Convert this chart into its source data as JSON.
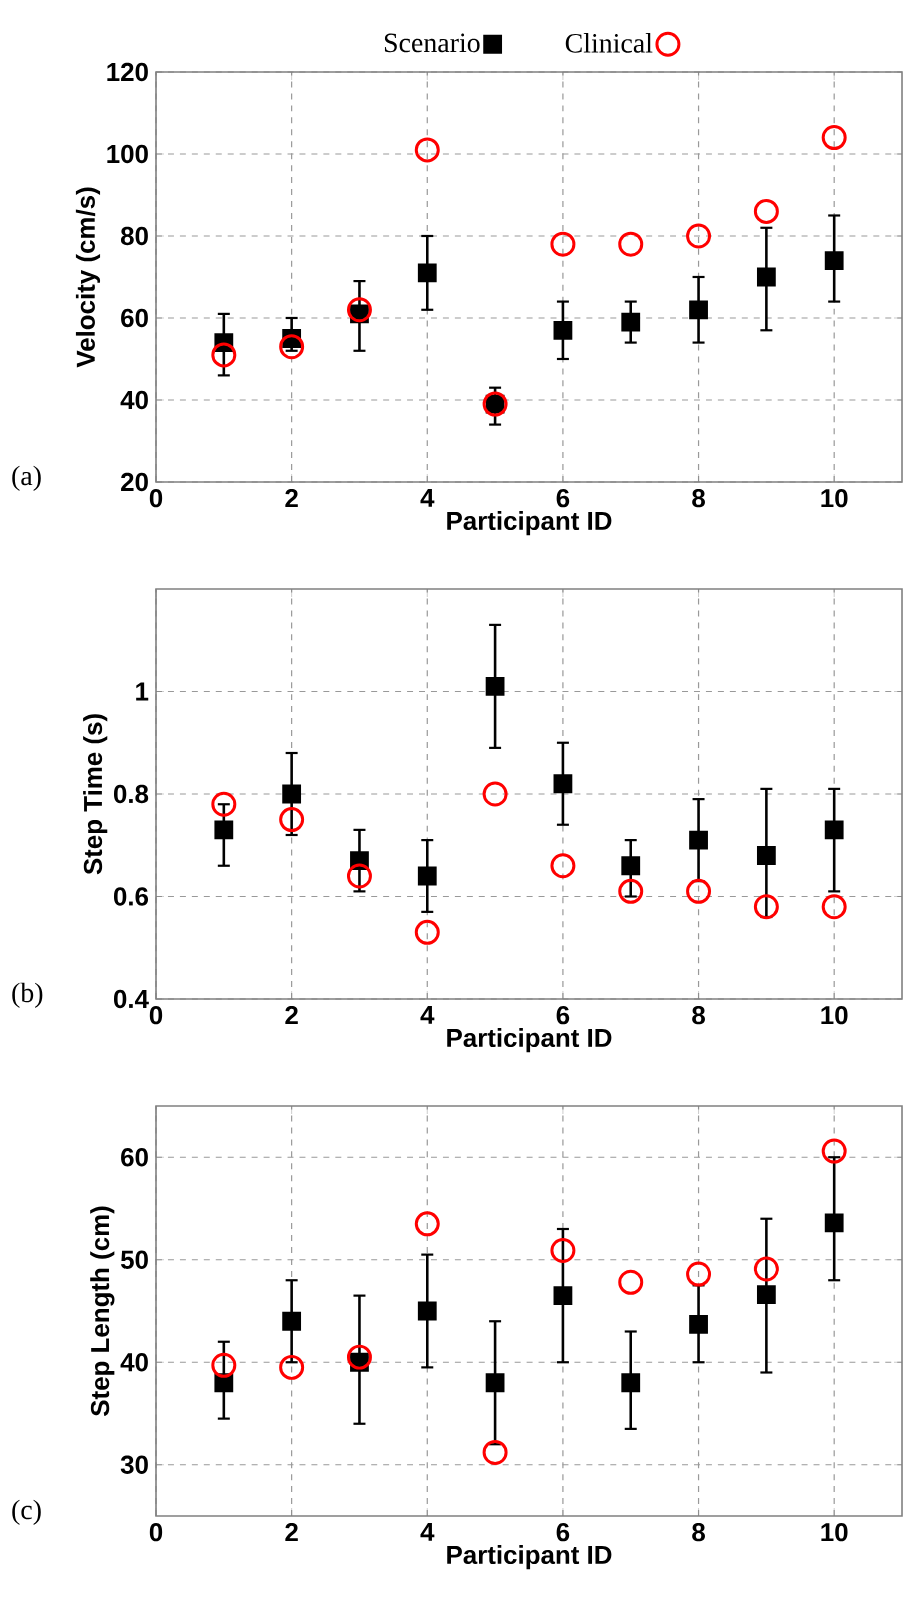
{
  "chart_data": [
    {
      "type": "scatter",
      "x": [
        1,
        2,
        3,
        4,
        5,
        6,
        7,
        8,
        9,
        10
      ],
      "xlim": [
        0,
        11
      ],
      "xticks": [
        0,
        2,
        4,
        6,
        8,
        10
      ],
      "ylim": [
        20,
        120
      ],
      "yticks": [
        20,
        40,
        60,
        80,
        100,
        120
      ],
      "xlabel": "Participant ID",
      "ylabel": "Velocity (cm/s)",
      "grid": true,
      "legend": "top",
      "annotations": [
        "(a)"
      ],
      "series": [
        {
          "name": "Scenario",
          "color": "#000000",
          "marker": "square",
          "values": [
            54,
            55,
            61,
            71,
            39,
            57,
            59,
            62,
            70,
            74
          ],
          "errors": [
            [
              46,
              61
            ],
            [
              52,
              60
            ],
            [
              52,
              69
            ],
            [
              62,
              80
            ],
            [
              34,
              43
            ],
            [
              50,
              64
            ],
            [
              54,
              64
            ],
            [
              54,
              70
            ],
            [
              57,
              82
            ],
            [
              64,
              85
            ]
          ]
        },
        {
          "name": "Clinical",
          "color": "#ff0000",
          "marker": "circle",
          "values": [
            51,
            53,
            62,
            101,
            39,
            78,
            78,
            80,
            86,
            104
          ]
        }
      ]
    },
    {
      "type": "scatter",
      "x": [
        1,
        2,
        3,
        4,
        5,
        6,
        7,
        8,
        9,
        10
      ],
      "xlim": [
        0,
        11
      ],
      "xticks": [
        0,
        2,
        4,
        6,
        8,
        10
      ],
      "ylim": [
        0.4,
        1.2
      ],
      "yticks": [
        0.4,
        0.6,
        0.8,
        1
      ],
      "xlabel": "Participant ID",
      "ylabel": "Step Time (s)",
      "grid": true,
      "annotations": [
        "(b)"
      ],
      "series": [
        {
          "color": "#000000",
          "marker": "square",
          "values": [
            0.73,
            0.8,
            0.67,
            0.64,
            1.01,
            0.82,
            0.66,
            0.71,
            0.68,
            0.73
          ],
          "errors": [
            [
              0.66,
              0.78
            ],
            [
              0.72,
              0.88
            ],
            [
              0.61,
              0.73
            ],
            [
              0.57,
              0.71
            ],
            [
              0.89,
              1.13
            ],
            [
              0.74,
              0.9
            ],
            [
              0.6,
              0.71
            ],
            [
              0.63,
              0.79
            ],
            [
              0.56,
              0.81
            ],
            [
              0.61,
              0.81
            ]
          ]
        },
        {
          "color": "#ff0000",
          "marker": "circle",
          "values": [
            0.78,
            0.75,
            0.64,
            0.53,
            0.8,
            0.66,
            0.61,
            0.61,
            0.58,
            0.58
          ]
        }
      ]
    },
    {
      "type": "scatter",
      "x": [
        1,
        2,
        3,
        4,
        5,
        6,
        7,
        8,
        9,
        10
      ],
      "xlim": [
        0,
        11
      ],
      "xticks": [
        0,
        2,
        4,
        6,
        8,
        10
      ],
      "ylim": [
        25,
        65
      ],
      "yticks": [
        30,
        40,
        50,
        60
      ],
      "xlabel": "Participant ID",
      "ylabel": "Step Length (cm)",
      "grid": true,
      "annotations": [
        "(c)"
      ],
      "series": [
        {
          "color": "#000000",
          "marker": "square",
          "values": [
            38,
            44,
            40,
            45,
            38,
            46.5,
            38,
            43.7,
            46.6,
            53.6
          ],
          "errors": [
            [
              34.5,
              42
            ],
            [
              40,
              48
            ],
            [
              34,
              46.5
            ],
            [
              39.5,
              50.5
            ],
            [
              32,
              44
            ],
            [
              40,
              53
            ],
            [
              33.5,
              43
            ],
            [
              40,
              47.5
            ],
            [
              39,
              54
            ],
            [
              48,
              60
            ]
          ]
        },
        {
          "color": "#ff0000",
          "marker": "circle",
          "values": [
            39.7,
            39.5,
            40.5,
            53.5,
            31.2,
            50.9,
            47.8,
            48.6,
            49.1,
            60.6
          ]
        }
      ]
    }
  ]
}
